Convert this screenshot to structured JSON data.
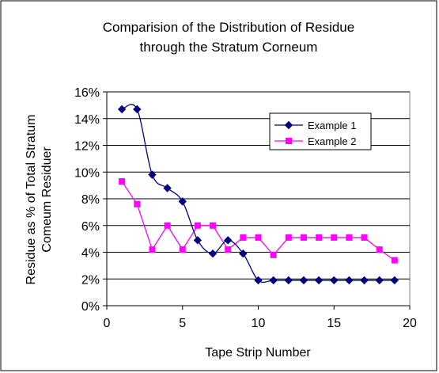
{
  "chart_data": {
    "type": "line",
    "title_lines": [
      "Comparision of the Distribution of Residue",
      "through the Stratum Corneum"
    ],
    "xlabel": "Tape Strip Number",
    "ylabel_lines": [
      "Residue as % of Total Stratum",
      "Comeum Residuer"
    ],
    "xlim": [
      0,
      20
    ],
    "ylim": [
      0,
      16
    ],
    "x_ticks": [
      0,
      5,
      10,
      15,
      20
    ],
    "x_tick_labels": [
      "0",
      "5",
      "10",
      "15",
      "20"
    ],
    "y_ticks": [
      0,
      2,
      4,
      6,
      8,
      10,
      12,
      14,
      16
    ],
    "y_tick_labels": [
      "0%",
      "2%",
      "4%",
      "6%",
      "8%",
      "10%",
      "12%",
      "14%",
      "16%"
    ],
    "grid": "horizontal",
    "legend_position": "top-right",
    "series": [
      {
        "name": "Example 1",
        "color": "#000080",
        "marker": "diamond",
        "smooth": true,
        "x": [
          1,
          2,
          3,
          4,
          5,
          6,
          7,
          8,
          9,
          10,
          11,
          12,
          13,
          14,
          15,
          16,
          17,
          18,
          19
        ],
        "y": [
          14.7,
          14.7,
          9.8,
          8.8,
          7.8,
          4.9,
          3.9,
          4.9,
          3.9,
          1.9,
          1.9,
          1.9,
          1.9,
          1.9,
          1.9,
          1.9,
          1.9,
          1.9,
          1.9
        ]
      },
      {
        "name": "Example 2",
        "color": "#ff00ff",
        "marker": "square",
        "smooth": false,
        "x": [
          1,
          2,
          3,
          4,
          5,
          6,
          7,
          8,
          9,
          10,
          11,
          12,
          13,
          14,
          15,
          16,
          17,
          18,
          19
        ],
        "y": [
          9.3,
          7.6,
          4.2,
          6.0,
          4.2,
          6.0,
          6.0,
          4.2,
          5.1,
          5.1,
          3.8,
          5.1,
          5.1,
          5.1,
          5.1,
          5.1,
          5.1,
          4.2,
          3.4
        ]
      }
    ]
  }
}
